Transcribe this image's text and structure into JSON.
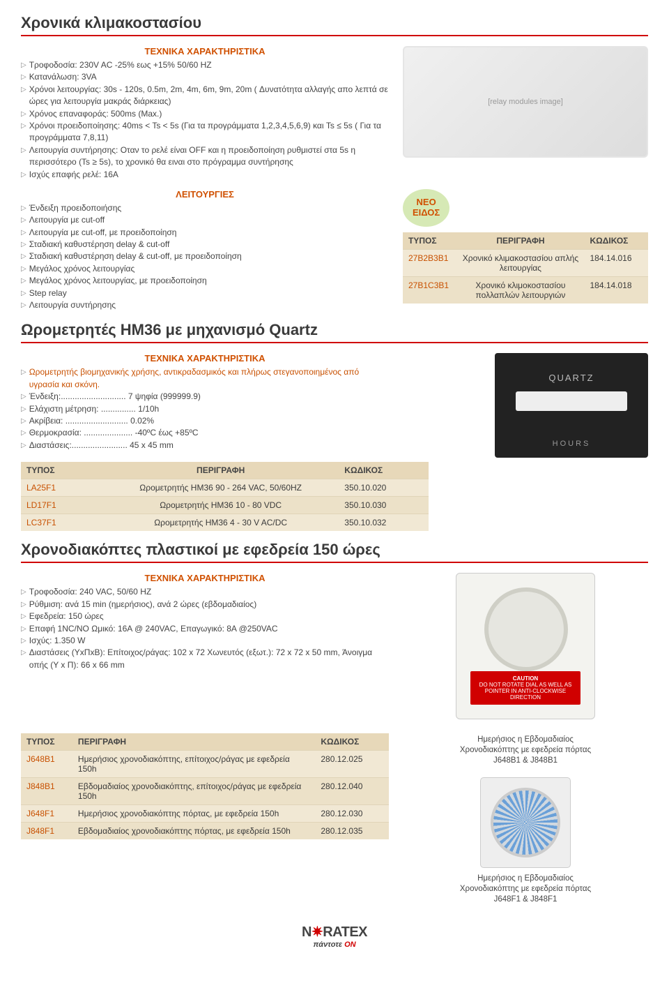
{
  "section1": {
    "title": "Χρονικά κλιμακοστασίου",
    "tech_heading": "ΤΕΧΝΙΚΑ ΧΑΡΑΚΤΗΡΙΣΤΙΚΑ",
    "specs": [
      "Τροφοδοσία: 230V AC -25% εως +15% 50/60 HZ",
      "Κατανάλωση: 3VA",
      "Χρόνοι λειτουργίας: 30s - 120s, 0.5m, 2m, 4m, 6m, 9m, 20m ( Δυνατότητα αλλαγής απο λεπτά σε ώρες για λειτουργία μακράς διάρκειας)",
      "Χρόνος επαναφοράς: 500ms (Max.)",
      "Χρόνοι προειδοποίησης: 40ms < Ts < 5s (Για τα προγράμματα 1,2,3,4,5,6,9) και Ts ≤ 5s ( Για τα προγράμματα 7,8,11)",
      "Λειτουργία συντήρησης: Οταν το ρελέ είναι OFF και η προειδοποίηση ρυθμιστεί στα 5s η περισσότερο (Ts ≥ 5s), το χρονικό θα ειναι στο πρόγραμμα συντήρησης",
      "Ισχύς επαφής ρελέ: 16Α"
    ],
    "func_heading": "ΛΕΙΤΟΥΡΓΙΕΣ",
    "functions": [
      "Ένδειξη προειδοποιήσης",
      "Λειτουργία με cut-off",
      "Λειτουργία με cut-off, με προειδοποίηση",
      "Σταδιακή καθυστέρηση delay & cut-off",
      "Σταδιακή καθυστέρηση delay & cut-off, με προειδοποίηση",
      "Μεγάλος χρόνος λειτουργίας",
      "Μεγάλος χρόνος λειτουργίας, με προειδοποίηση",
      "Step relay",
      "Λειτουργία συντήρησης"
    ],
    "badge_line1": "ΝΕΟ",
    "badge_line2": "ΕΙΔΟΣ",
    "table": {
      "headers": [
        "ΤΥΠΟΣ",
        "ΠΕΡΙΓΡΑΦΗ",
        "ΚΩΔΙΚΟΣ"
      ],
      "rows": [
        {
          "type": "27B2B3B1",
          "desc": "Χρονικό κλιμακοστασίου απλής λειτουργίας",
          "code": "184.14.016"
        },
        {
          "type": "27B1C3B1",
          "desc": "Χρονικό κλιμοκοστασίου πολλαπλών λειτουργιών",
          "code": "184.14.018"
        }
      ]
    }
  },
  "section2": {
    "title": "Ωρομετρητές ΗΜ36 με μηχανισμό Quartz",
    "tech_heading": "ΤΕΧΝΙΚΑ ΧΑΡΑΚΤΗΡΙΣΤΙΚΑ",
    "intro": "Ωρομετρητής βιομηχανικής χρήσης, αντικραδασμικός και πλήρως στεγανοποιημένος από υγρασία και σκόνη.",
    "specs": [
      "Ένδειξη:............................ 7 ψηφία (999999.9)",
      "Ελάχιστη μέτρηση: ............... 1/10h",
      "Ακρίβεια: ........................... 0.02%",
      "Θερμοκρασία: ..................... -40ºC έως +85ºC",
      "Διαστάσεις:........................ 45 x 45 mm"
    ],
    "table": {
      "headers": [
        "ΤΥΠΟΣ",
        "ΠΕΡΙΓΡΑΦΗ",
        "ΚΩΔΙΚΟΣ"
      ],
      "rows": [
        {
          "type": "LA25F1",
          "desc": "Ωρομετρητής HM36 90 - 264 VAC, 50/60HZ",
          "code": "350.10.020"
        },
        {
          "type": "LD17F1",
          "desc": "Ωρομετρητής HM36 10 - 80 VDC",
          "code": "350.10.030"
        },
        {
          "type": "LC37F1",
          "desc": "Ωρομετρητής  HM36 4 - 30 V AC/DC",
          "code": "350.10.032"
        }
      ]
    },
    "hours_label": "HOURS"
  },
  "section3": {
    "title": "Χρονοδιακόπτες πλαστικοί με εφεδρεία 150 ώρες",
    "tech_heading": "ΤΕΧΝΙΚΑ ΧΑΡΑΚΤΗΡΙΣΤΙΚΑ",
    "specs": [
      "Τροφοδοσία: 240 VAC, 50/60 HZ",
      "Ρύθμιση: ανά 15 min (ημερήσιος), ανά 2 ώρες (εβδομαδιαίος)",
      "Εφεδρεία: 150 ώρες",
      "Επαφή 1NC/NO Ωμικό: 16A @ 240VAC, Επαγωγικό: 8Α @250VAC",
      "Ισχύς: 1.350 W",
      "Διαστάσεις (ΥxΠxΒ): Επίτοιχος/ράγας: 102 x 72 Χωνευτός (εξωτ.): 72 x 72 x 50 mm, Άνοιγμα οπής (Υ x Π): 66 x 66 mm"
    ],
    "table": {
      "headers": [
        "ΤΥΠΟΣ",
        "ΠΕΡΙΓΡΑΦΗ",
        "ΚΩΔΙΚΟΣ"
      ],
      "rows": [
        {
          "type": "J648B1",
          "desc": "Ημερήσιος χρονοδιακόπτης, επίτοιχος/ράγας με εφεδρεία 150h",
          "code": "280.12.025"
        },
        {
          "type": "J848B1",
          "desc": "Εβδομαδιαίος χρονοδιακόπτης, επίτοιχος/ράγας με εφεδρεία 150h",
          "code": "280.12.040"
        },
        {
          "type": "J648F1",
          "desc": "Ημερήσιος χρονοδιακόπτης πόρτας, με εφεδρεία 150h",
          "code": "280.12.030"
        },
        {
          "type": "J848F1",
          "desc": "Εβδομαδιαίος χρονοδιακόπτης πόρτας, με εφεδρεία 150h",
          "code": "280.12.035"
        }
      ]
    },
    "caution_label": "CAUTION",
    "caution_text": "DO NOT ROTATE DIAL AS WELL AS POINTER IN ANTI-CLOCKWISE DIRECTION",
    "caption1_l1": "Ημερήσιος η Εβδομαδιαίος",
    "caption1_l2": "Χρονοδιακόπτης με εφεδρεία  πόρτας",
    "caption1_l3": "J648B1 & J848B1",
    "caption2_l1": "Ημερήσιος η Εβδομαδιαίος",
    "caption2_l2": "Χρονοδιακόπτης με εφεδρεία  πόρτας",
    "caption2_l3": "J648F1 & J848F1"
  },
  "footer": {
    "brand_pre": "N",
    "brand_post": "RATEX",
    "tag_pre": "πάντοτε ",
    "tag_on": "ON"
  }
}
